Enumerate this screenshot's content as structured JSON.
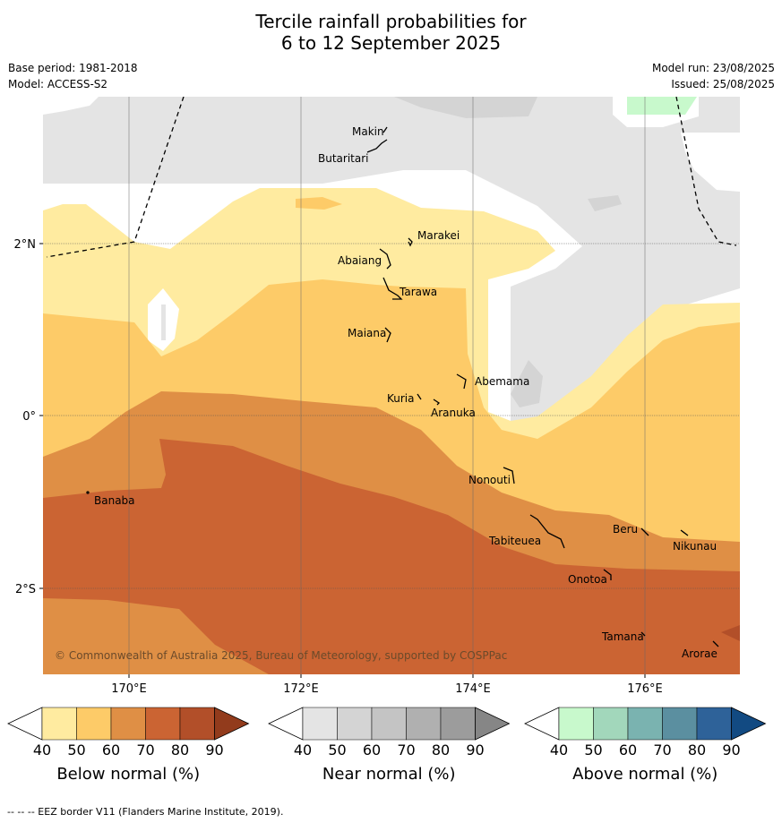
{
  "header": {
    "title_line1": "Tercile rainfall probabilities for",
    "title_line2": "6 to 12 September 2025",
    "base_period": "Base period: 1981-2018",
    "model": "Model: ACCESS-S2",
    "model_run": "Model run: 23/08/2025",
    "issued": "Issued: 25/08/2025"
  },
  "map": {
    "lat_labels": [
      "2°N",
      "0°",
      "2°S"
    ],
    "lon_labels": [
      "170°E",
      "172°E",
      "174°E",
      "176°E"
    ],
    "copyright": "© Commonwealth of Australia 2025, Bureau of Meteorology, supported by COSPPac",
    "islands": [
      "Makin",
      "Butaritari",
      "Marakei",
      "Abaiang",
      "Tarawa",
      "Maiana",
      "Abemama",
      "Kuria",
      "Aranuka",
      "Nonouti",
      "Banaba",
      "Beru",
      "Nikunau",
      "Tabiteuea",
      "Onotoa",
      "Tamana",
      "Arorae"
    ]
  },
  "colorbars": [
    {
      "title": "Below normal (%)",
      "ticks": [
        "40",
        "50",
        "60",
        "70",
        "80",
        "90"
      ],
      "colors": [
        "#ffffff",
        "#ffeba0",
        "#fdcb68",
        "#df8f45",
        "#cb6433",
        "#b24f29",
        "#923b1c"
      ]
    },
    {
      "title": "Near normal (%)",
      "ticks": [
        "40",
        "50",
        "60",
        "70",
        "80",
        "90"
      ],
      "colors": [
        "#ffffff",
        "#e4e4e4",
        "#d4d4d4",
        "#c4c4c4",
        "#b0b0b0",
        "#9c9c9c",
        "#868686"
      ]
    },
    {
      "title": "Above normal (%)",
      "ticks": [
        "40",
        "50",
        "60",
        "70",
        "80",
        "90"
      ],
      "colors": [
        "#ffffff",
        "#c8f9cc",
        "#a2d7bb",
        "#7ab3b0",
        "#5b8fa0",
        "#2e6299",
        "#124a82"
      ]
    }
  ],
  "footer": "-- -- -- EEZ border V11 (Flanders Marine Institute, 2019)."
}
